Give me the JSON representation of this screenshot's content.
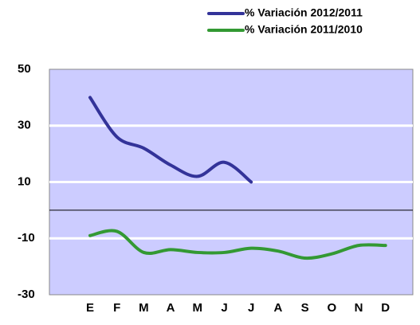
{
  "chart_data": {
    "type": "line",
    "categories": [
      "E",
      "F",
      "M",
      "A",
      "M",
      "J",
      "J",
      "A",
      "S",
      "O",
      "N",
      "D"
    ],
    "series": [
      {
        "name": "% Variación 2012/2011",
        "color": "#333399",
        "values": [
          40,
          26,
          22,
          16,
          12,
          17,
          10,
          null,
          null,
          null,
          null,
          null
        ]
      },
      {
        "name": "% Variación 2011/2010",
        "color": "#339933",
        "values": [
          -9,
          -7.5,
          -15,
          -14,
          -15,
          -15,
          -13.5,
          -14.5,
          -17,
          -15.5,
          -12.5,
          -12.5
        ]
      }
    ],
    "ylim": [
      -30,
      50
    ],
    "yticks": [
      -30,
      -10,
      10,
      30,
      50
    ],
    "grid": true,
    "legend": "top-right",
    "background": "#ccccff"
  }
}
